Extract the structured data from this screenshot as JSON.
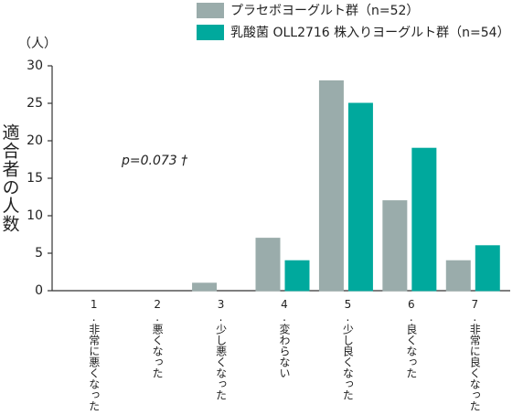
{
  "chart_data": {
    "type": "bar",
    "y_label": "適合者の人数",
    "y_unit": "（人）",
    "annotation": "p=0.073 †",
    "categories": [
      "1.非常に悪くなった",
      "2.悪くなった",
      "3.少し悪くなった",
      "4.変わらない",
      "5.少し良くなった",
      "6.良くなった",
      "7.非常に良くなった"
    ],
    "series": [
      {
        "name": "プラセボヨーグルト群（n=52）",
        "color": "#9aacab",
        "values": [
          0,
          0,
          1,
          7,
          28,
          12,
          4
        ]
      },
      {
        "name": "乳酸菌 OLL2716 株入りヨーグルト群（n=54）",
        "color": "#00a99d",
        "values": [
          0,
          0,
          0,
          4,
          25,
          19,
          6
        ]
      }
    ],
    "ylim": [
      0,
      30
    ],
    "yticks": [
      0,
      5,
      10,
      15,
      20,
      25,
      30
    ],
    "grid": false
  }
}
